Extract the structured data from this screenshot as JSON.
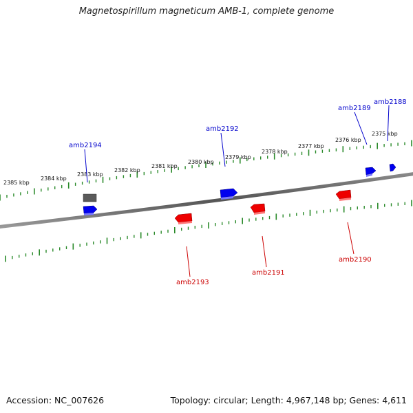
{
  "title": "Magnetospirillum magneticum AMB-1, complete genome",
  "footer": {
    "accession": "Accession: NC_007626",
    "summary": "Topology: circular; Length: 4,967,148 bp; Genes: 4,611"
  },
  "colors": {
    "forward_gene": "#0000ee",
    "reverse_gene": "#ee0000",
    "other_gene": "#555555",
    "tick": "#2a8a2a",
    "backbone": "#6b6b6b"
  },
  "scale_labels": [
    "2385 kbp",
    "2384 kbp",
    "2383 kbp",
    "2382 kbp",
    "2381 kbp",
    "2380 kbp",
    "2379 kbp",
    "2378 kbp",
    "2377 kbp",
    "2376 kbp",
    "2375 kbp"
  ],
  "genes": [
    {
      "name": "amb2194",
      "strand": "forward",
      "labeled": true
    },
    {
      "name": "amb2192",
      "strand": "forward",
      "labeled": true
    },
    {
      "name": "amb2189",
      "strand": "forward",
      "labeled": true
    },
    {
      "name": "amb2188",
      "strand": "forward",
      "labeled": true
    },
    {
      "name": "amb2193",
      "strand": "reverse",
      "labeled": true
    },
    {
      "name": "amb2191",
      "strand": "reverse",
      "labeled": true
    },
    {
      "name": "amb2190",
      "strand": "reverse",
      "labeled": true
    }
  ]
}
